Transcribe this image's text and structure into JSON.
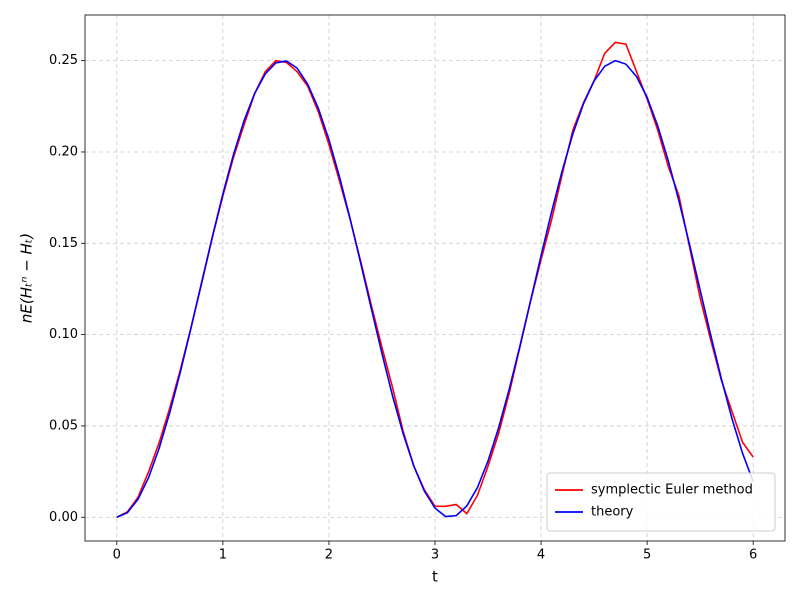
{
  "chart_data": {
    "type": "line",
    "xlabel": "t",
    "ylabel": "nE(Hₜⁿ − Hₜ)",
    "x": [
      0,
      0.1,
      0.2,
      0.3,
      0.4,
      0.5,
      0.6,
      0.7,
      0.8,
      0.9,
      1.0,
      1.1,
      1.2,
      1.3,
      1.4,
      1.5,
      1.6,
      1.7,
      1.8,
      1.9,
      2.0,
      2.1,
      2.2,
      2.3,
      2.4,
      2.5,
      2.6,
      2.7,
      2.8,
      2.9,
      3.0,
      3.1,
      3.2,
      3.3,
      3.4,
      3.5,
      3.6,
      3.7,
      3.8,
      3.9,
      4.0,
      4.1,
      4.2,
      4.3,
      4.4,
      4.5,
      4.6,
      4.7,
      4.8,
      4.9,
      5.0,
      5.1,
      5.2,
      5.3,
      5.4,
      5.5,
      5.6,
      5.7,
      5.8,
      5.9,
      6.0
    ],
    "series": [
      {
        "name": "symplectic Euler method",
        "color": "#ff0000",
        "values": [
          0,
          0.003,
          0.011,
          0.025,
          0.041,
          0.06,
          0.081,
          0.104,
          0.128,
          0.153,
          0.176,
          0.197,
          0.215,
          0.232,
          0.244,
          0.25,
          0.249,
          0.244,
          0.236,
          0.222,
          0.204,
          0.184,
          0.163,
          0.14,
          0.116,
          0.093,
          0.071,
          0.047,
          0.028,
          0.015,
          0.006,
          0.006,
          0.007,
          0.002,
          0.012,
          0.028,
          0.046,
          0.068,
          0.093,
          0.118,
          0.141,
          0.163,
          0.188,
          0.212,
          0.227,
          0.239,
          0.254,
          0.26,
          0.259,
          0.244,
          0.229,
          0.212,
          0.192,
          0.176,
          0.148,
          0.12,
          0.097,
          0.075,
          0.058,
          0.041,
          0.033
        ]
      },
      {
        "name": "theory",
        "color": "#0000ff",
        "values": [
          0,
          0.0025,
          0.0099,
          0.0218,
          0.0379,
          0.0575,
          0.0797,
          0.1038,
          0.1287,
          0.1534,
          0.177,
          0.1986,
          0.2172,
          0.2321,
          0.2428,
          0.2488,
          0.2498,
          0.2459,
          0.2371,
          0.2239,
          0.2067,
          0.1863,
          0.1634,
          0.139,
          0.1141,
          0.0896,
          0.0664,
          0.0457,
          0.0281,
          0.0143,
          0.005,
          0.0004,
          0.0009,
          0.0062,
          0.0163,
          0.0308,
          0.049,
          0.0702,
          0.0936,
          0.1183,
          0.1432,
          0.1674,
          0.1899,
          0.2099,
          0.2264,
          0.2389,
          0.2469,
          0.25,
          0.2481,
          0.2413,
          0.2299,
          0.2143,
          0.1951,
          0.1732,
          0.1493,
          0.1244,
          0.0996,
          0.0758,
          0.054,
          0.035,
          0.0195
        ]
      }
    ],
    "xlim": [
      -0.3,
      6.3
    ],
    "ylim": [
      -0.013,
      0.275
    ],
    "xticks": [
      0,
      1,
      2,
      3,
      4,
      5,
      6
    ],
    "yticks": [
      {
        "value": 0,
        "label": "0.00"
      },
      {
        "value": 0.05,
        "label": "0.05"
      },
      {
        "value": 0.1,
        "label": "0.10"
      },
      {
        "value": 0.15,
        "label": "0.15"
      },
      {
        "value": 0.2,
        "label": "0.20"
      },
      {
        "value": 0.25,
        "label": "0.25"
      }
    ],
    "grid": true,
    "legend": "lower right"
  }
}
